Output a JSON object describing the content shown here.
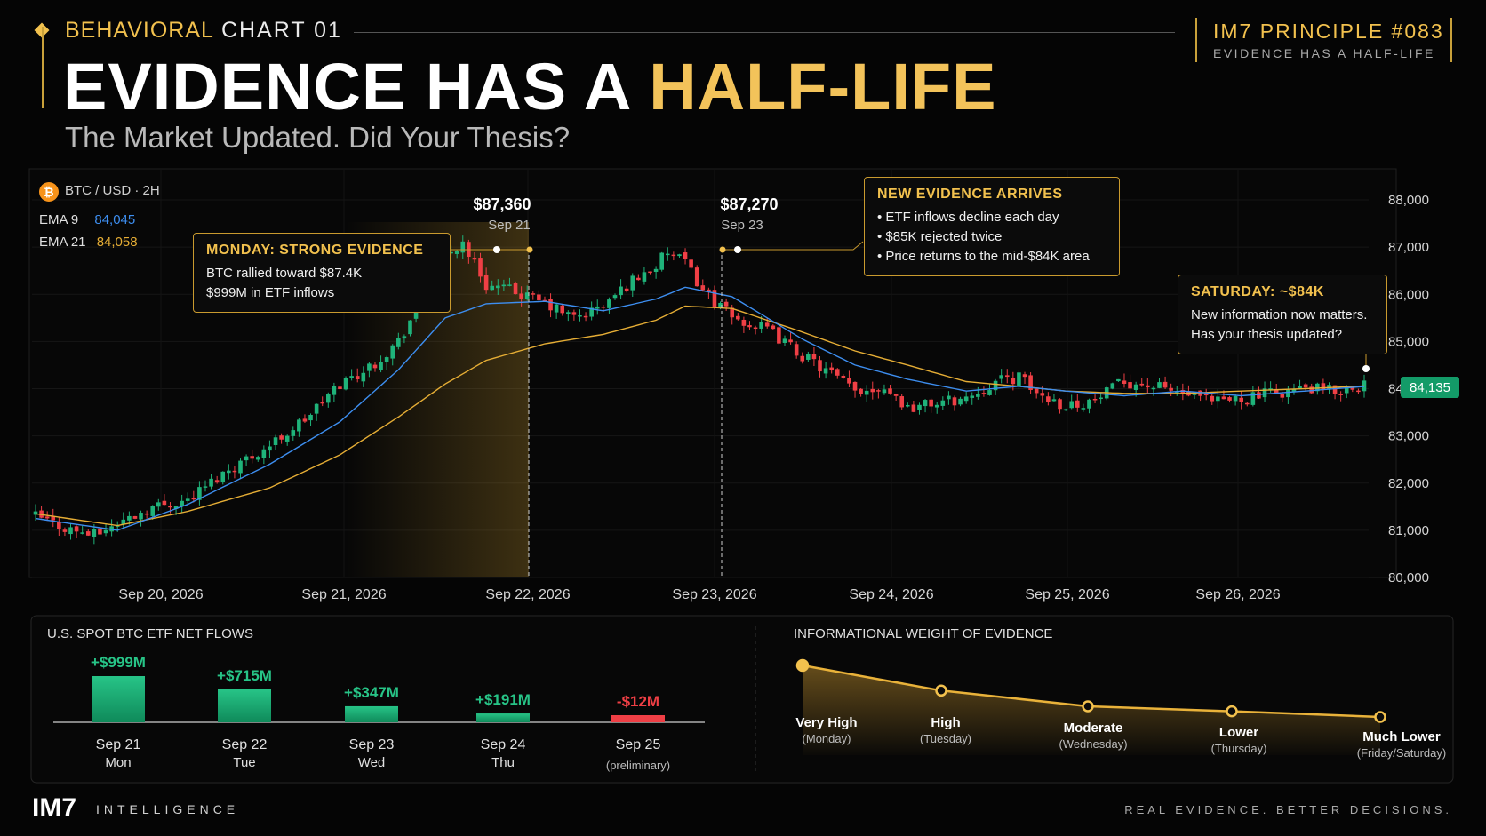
{
  "header": {
    "kicker": "BEHAVIORAL",
    "kicker_sub": "CHART 01",
    "title_main": "EVIDENCE HAS A ",
    "title_highlight": "HALF-LIFE",
    "subtitle": "The Market Updated. Did Your Thesis?",
    "principle_title": "IM7 PRINCIPLE #083",
    "principle_sub": "EVIDENCE HAS A HALF-LIFE"
  },
  "legend": {
    "pair": "BTC / USD",
    "timeframe": "· 2H",
    "ema9_label": "EMA 9",
    "ema9_value": "84,045",
    "ema21_label": "EMA 21",
    "ema21_value": "84,058"
  },
  "annotations": {
    "monday": {
      "title": "MONDAY: STRONG EVIDENCE",
      "lines": [
        "BTC rallied toward $87.4K",
        "$999M in ETF inflows"
      ]
    },
    "new_evidence": {
      "title": "NEW EVIDENCE ARRIVES",
      "lines": [
        "• ETF inflows decline each day",
        "• $85K rejected twice",
        "• Price returns to the mid-$84K area"
      ]
    },
    "saturday": {
      "title": "SATURDAY: ~$84K",
      "lines": [
        "New information now matters.",
        "Has your thesis updated?"
      ]
    },
    "peak1": {
      "price": "$87,360",
      "date": "Sep 21"
    },
    "peak2": {
      "price": "$87,270",
      "date": "Sep 23"
    },
    "current_price": "84,135"
  },
  "colors": {
    "up": "#1fb37a",
    "down": "#ef3f45",
    "ema9": "#3d8ef0",
    "ema21": "#e5ad35",
    "accent": "#f2c14e",
    "price_tag": "#139b68"
  },
  "flows_panel": {
    "title": "U.S. SPOT BTC ETF NET FLOWS"
  },
  "weight_panel": {
    "title": "INFORMATIONAL WEIGHT OF EVIDENCE"
  },
  "chart_data": [
    {
      "type": "candlestick",
      "x_labels": [
        "Sep 20, 2026",
        "Sep 21, 2026",
        "Sep 22, 2026",
        "Sep 23, 2026",
        "Sep 24, 2026",
        "Sep 25, 2026",
        "Sep 26, 2026"
      ],
      "y_ticks": [
        "88,000",
        "87,000",
        "86,000",
        "85,000",
        "84,000",
        "83,000",
        "82,000",
        "81,000",
        "80,000"
      ],
      "ylim": [
        80000,
        88300
      ],
      "close_path": [
        [
          0,
          81300
        ],
        [
          5,
          81050
        ],
        [
          10,
          80900
        ],
        [
          14,
          81150
        ],
        [
          20,
          81500
        ],
        [
          26,
          81650
        ],
        [
          33,
          82300
        ],
        [
          40,
          82800
        ],
        [
          46,
          83350
        ],
        [
          52,
          84100
        ],
        [
          57,
          84450
        ],
        [
          62,
          85000
        ],
        [
          66,
          85900
        ],
        [
          70,
          86800
        ],
        [
          73,
          87100
        ],
        [
          77,
          86200
        ],
        [
          82,
          86050
        ],
        [
          87,
          85800
        ],
        [
          92,
          85500
        ],
        [
          97,
          85750
        ],
        [
          102,
          86300
        ],
        [
          106,
          86600
        ],
        [
          108,
          86900
        ],
        [
          111,
          86650
        ],
        [
          114,
          86100
        ],
        [
          119,
          85500
        ],
        [
          125,
          85250
        ],
        [
          131,
          84700
        ],
        [
          136,
          84300
        ],
        [
          140,
          83950
        ],
        [
          145,
          84050
        ],
        [
          149,
          83600
        ],
        [
          154,
          83700
        ],
        [
          159,
          83800
        ],
        [
          164,
          84150
        ],
        [
          168,
          84250
        ],
        [
          171,
          83900
        ],
        [
          176,
          83650
        ],
        [
          181,
          83750
        ],
        [
          186,
          84150
        ],
        [
          191,
          84050
        ],
        [
          196,
          83900
        ],
        [
          201,
          83700
        ],
        [
          206,
          83800
        ],
        [
          211,
          83900
        ],
        [
          217,
          84000
        ],
        [
          222,
          83950
        ],
        [
          227,
          84100
        ]
      ],
      "ema9_path": [
        [
          0,
          81250
        ],
        [
          14,
          81000
        ],
        [
          26,
          81550
        ],
        [
          40,
          82400
        ],
        [
          52,
          83300
        ],
        [
          62,
          84400
        ],
        [
          70,
          85500
        ],
        [
          77,
          85800
        ],
        [
          87,
          85850
        ],
        [
          97,
          85650
        ],
        [
          106,
          85900
        ],
        [
          111,
          86150
        ],
        [
          119,
          85950
        ],
        [
          131,
          85050
        ],
        [
          140,
          84500
        ],
        [
          149,
          84200
        ],
        [
          159,
          83950
        ],
        [
          168,
          84050
        ],
        [
          176,
          83950
        ],
        [
          186,
          83850
        ],
        [
          196,
          83950
        ],
        [
          206,
          83850
        ],
        [
          217,
          83950
        ],
        [
          227,
          84045
        ]
      ],
      "ema21_path": [
        [
          0,
          81350
        ],
        [
          14,
          81100
        ],
        [
          26,
          81400
        ],
        [
          40,
          81900
        ],
        [
          52,
          82600
        ],
        [
          62,
          83400
        ],
        [
          70,
          84100
        ],
        [
          77,
          84600
        ],
        [
          87,
          84950
        ],
        [
          97,
          85150
        ],
        [
          106,
          85450
        ],
        [
          111,
          85750
        ],
        [
          119,
          85700
        ],
        [
          131,
          85200
        ],
        [
          140,
          84800
        ],
        [
          149,
          84500
        ],
        [
          159,
          84150
        ],
        [
          168,
          84050
        ],
        [
          176,
          83950
        ],
        [
          186,
          83900
        ],
        [
          196,
          83900
        ],
        [
          206,
          83950
        ],
        [
          217,
          84000
        ],
        [
          227,
          84058
        ]
      ],
      "peaks": [
        {
          "price": 87360,
          "date": "Sep 21"
        },
        {
          "price": 87270,
          "date": "Sep 23"
        }
      ]
    },
    {
      "type": "bar",
      "title": "U.S. SPOT BTC ETF NET FLOWS",
      "categories": [
        "Sep 21",
        "Sep 22",
        "Sep 23",
        "Sep 24",
        "Sep 25"
      ],
      "sublabels": [
        "Mon",
        "Tue",
        "Wed",
        "Thu",
        "(preliminary)"
      ],
      "values": [
        999,
        715,
        347,
        191,
        -12
      ],
      "value_labels": [
        "+$999M",
        "+$715M",
        "+$347M",
        "+$191M",
        "-$12M"
      ],
      "unit": "$M"
    },
    {
      "type": "line",
      "title": "INFORMATIONAL WEIGHT OF EVIDENCE",
      "categories": [
        "Very High",
        "High",
        "Moderate",
        "Lower",
        "Much Lower"
      ],
      "sublabels": [
        "(Monday)",
        "(Tuesday)",
        "(Wednesday)",
        "(Thursday)",
        "(Friday/Saturday)"
      ],
      "values": [
        1.0,
        0.6,
        0.35,
        0.27,
        0.18
      ]
    }
  ],
  "footer": {
    "logo": "IM7",
    "intel": "INTELLIGENCE",
    "tagline": "REAL EVIDENCE. BETTER DECISIONS."
  }
}
